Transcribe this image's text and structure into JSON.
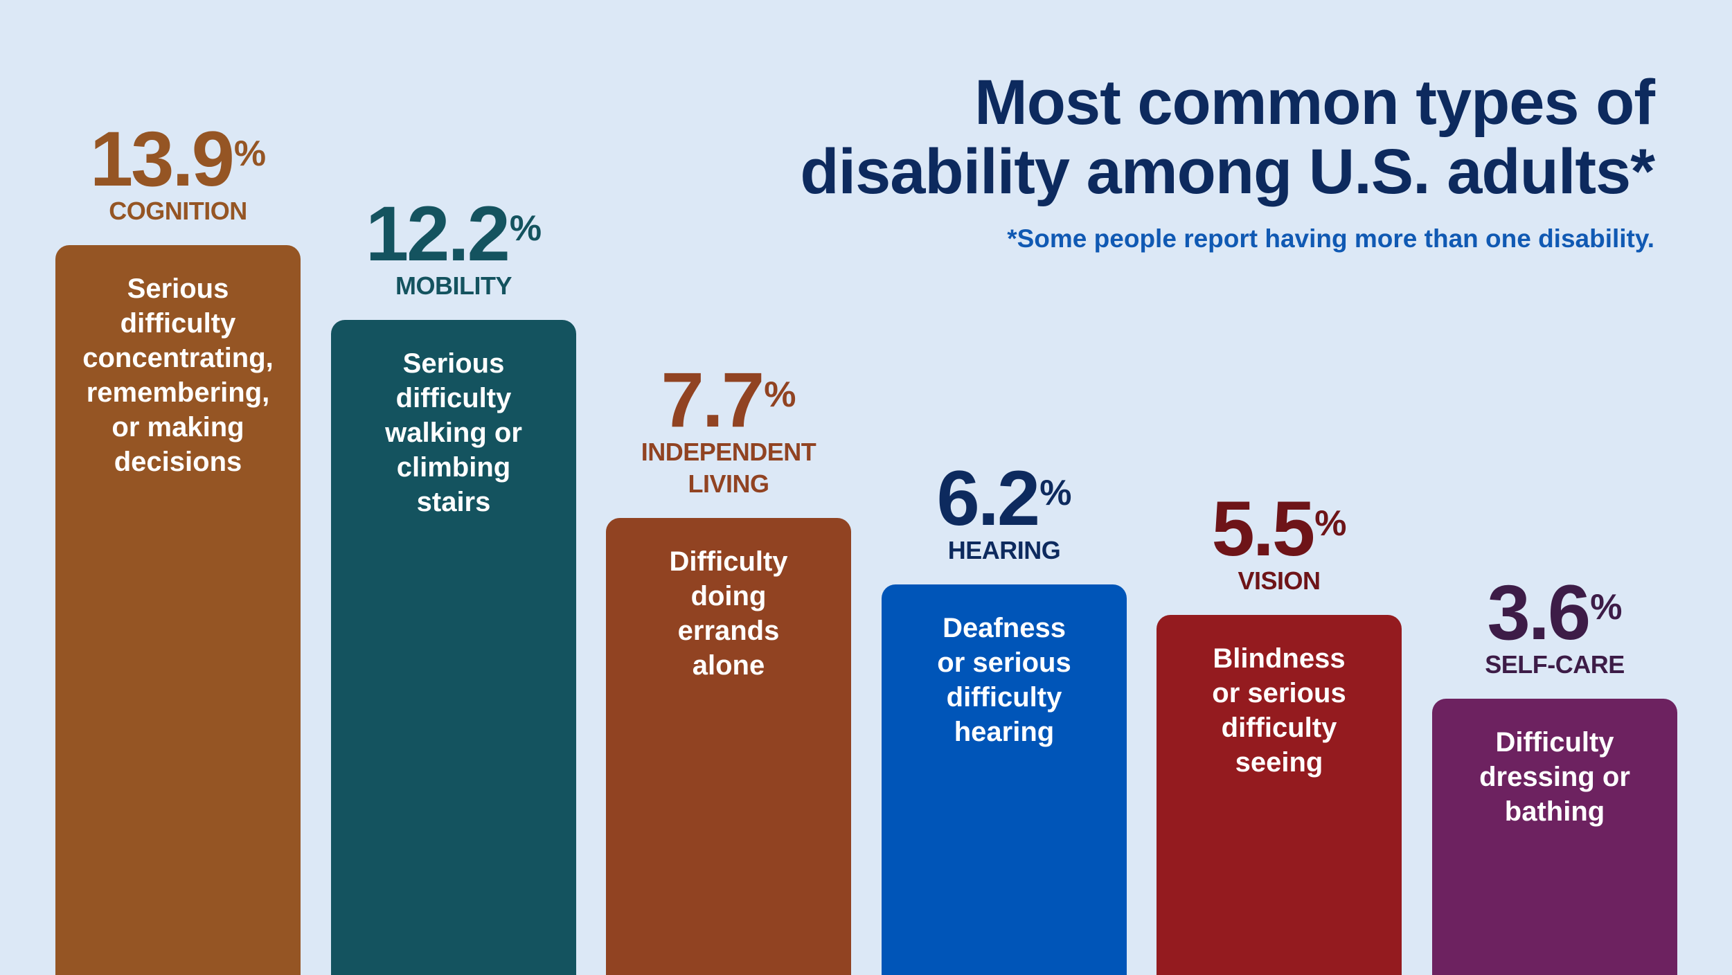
{
  "title_lines": [
    "Most common types of",
    "disability among U.S. adults*"
  ],
  "footnote": "*Some people report having more than one disability.",
  "chart_data": {
    "type": "bar",
    "unit": "%",
    "categories": [
      "COGNITION",
      "MOBILITY",
      "INDEPENDENT LIVING",
      "HEARING",
      "VISION",
      "SELF-CARE"
    ],
    "values": [
      13.9,
      12.2,
      7.7,
      6.2,
      5.5,
      3.6
    ],
    "bars": [
      {
        "value": 13.9,
        "value_text": "13.9",
        "pct_symbol": "%",
        "category_lines": [
          "COGNITION"
        ],
        "desc_lines": [
          "Serious",
          "difficulty",
          "concentrating,",
          "remembering,",
          "or making",
          "decisions"
        ],
        "color": "#955524",
        "label_color": "#955524"
      },
      {
        "value": 12.2,
        "value_text": "12.2",
        "pct_symbol": "%",
        "category_lines": [
          "MOBILITY"
        ],
        "desc_lines": [
          "Serious",
          "difficulty",
          "walking or",
          "climbing",
          "stairs"
        ],
        "color": "#14535f",
        "label_color": "#14535f"
      },
      {
        "value": 7.7,
        "value_text": "7.7",
        "pct_symbol": "%",
        "category_lines": [
          "INDEPENDENT",
          "LIVING"
        ],
        "desc_lines": [
          "Difficulty",
          "doing",
          "errands",
          "alone"
        ],
        "color": "#914322",
        "label_color": "#914322"
      },
      {
        "value": 6.2,
        "value_text": "6.2",
        "pct_symbol": "%",
        "category_lines": [
          "HEARING"
        ],
        "desc_lines": [
          "Deafness",
          "or serious",
          "difficulty",
          "hearing"
        ],
        "color": "#0055b8",
        "label_color": "#0d2a5e"
      },
      {
        "value": 5.5,
        "value_text": "5.5",
        "pct_symbol": "%",
        "category_lines": [
          "VISION"
        ],
        "desc_lines": [
          "Blindness",
          "or serious",
          "difficulty",
          "seeing"
        ],
        "color": "#941b1f",
        "label_color": "#6e1418"
      },
      {
        "value": 3.6,
        "value_text": "3.6",
        "pct_symbol": "%",
        "category_lines": [
          "SELF-CARE"
        ],
        "desc_lines": [
          "Difficulty",
          "dressing or",
          "bathing"
        ],
        "color": "#6d2260",
        "label_color": "#3d1c47"
      }
    ]
  }
}
